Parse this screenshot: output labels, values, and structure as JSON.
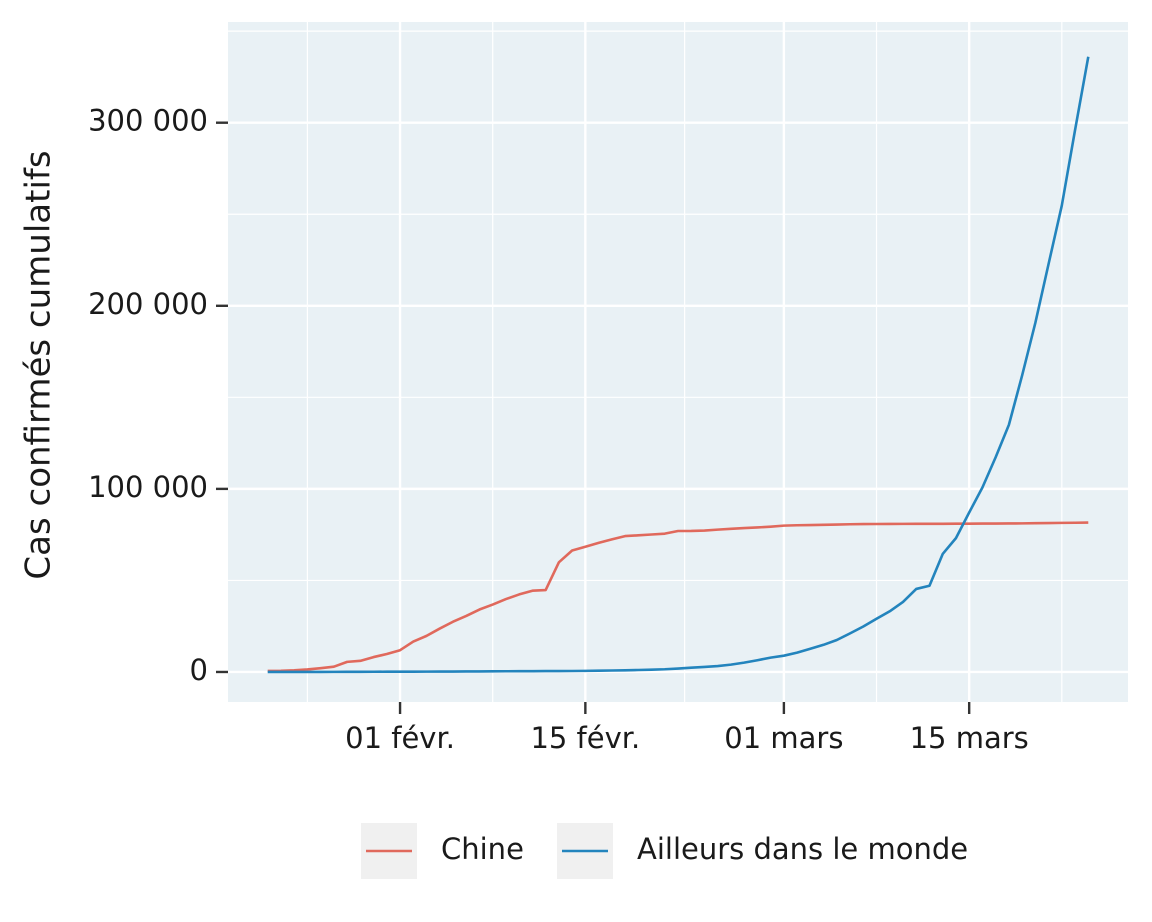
{
  "chart_data": {
    "type": "line",
    "y_label": "Cas confirmés cumulatifs",
    "x": [
      "01-22",
      "01-23",
      "01-24",
      "01-25",
      "01-26",
      "01-27",
      "01-28",
      "01-29",
      "01-30",
      "01-31",
      "02-01",
      "02-02",
      "02-03",
      "02-04",
      "02-05",
      "02-06",
      "02-07",
      "02-08",
      "02-09",
      "02-10",
      "02-11",
      "02-12",
      "02-13",
      "02-14",
      "02-15",
      "02-16",
      "02-17",
      "02-18",
      "02-19",
      "02-20",
      "02-21",
      "02-22",
      "02-23",
      "02-24",
      "02-25",
      "02-26",
      "02-27",
      "02-28",
      "02-29",
      "03-01",
      "03-02",
      "03-03",
      "03-04",
      "03-05",
      "03-06",
      "03-07",
      "03-08",
      "03-09",
      "03-10",
      "03-11",
      "03-12",
      "03-13",
      "03-14",
      "03-15",
      "03-16",
      "03-17",
      "03-18",
      "03-19",
      "03-20",
      "03-21",
      "03-22",
      "03-23",
      "03-24"
    ],
    "series": [
      {
        "name": "Chine",
        "color": "#e0695c",
        "values": [
          548,
          643,
          920,
          1406,
          2075,
          2877,
          5509,
          6087,
          8141,
          9802,
          11891,
          16630,
          19716,
          23707,
          27440,
          30587,
          34110,
          36814,
          39829,
          42354,
          44386,
          44759,
          59895,
          66358,
          68413,
          70513,
          72434,
          74211,
          74619,
          75077,
          75550,
          77001,
          77022,
          77241,
          77754,
          78166,
          78600,
          78928,
          79356,
          79932,
          80136,
          80261,
          80386,
          80537,
          80690,
          80770,
          80823,
          80860,
          80887,
          80921,
          80932,
          80945,
          80977,
          81003,
          81033,
          81058,
          81102,
          81156,
          81250,
          81305,
          81435,
          81498,
          81591
        ]
      },
      {
        "name": "Ailleurs dans le monde",
        "color": "#2384bd",
        "values": [
          7,
          11,
          21,
          28,
          43,
          54,
          64,
          82,
          114,
          139,
          149,
          169,
          188,
          218,
          242,
          282,
          315,
          335,
          389,
          413,
          436,
          470,
          510,
          525,
          603,
          691,
          799,
          901,
          1078,
          1272,
          1492,
          1878,
          2351,
          2727,
          3223,
          4004,
          5121,
          6417,
          7829,
          8891,
          10567,
          12668,
          14844,
          17455,
          21084,
          24829,
          29062,
          33160,
          38276,
          45349,
          47069,
          64457,
          73111,
          87102,
          100773,
          117287,
          134963,
          161947,
          190716,
          222880,
          254823,
          296000,
          336000
        ]
      }
    ],
    "xlim": [
      "01-19",
      "03-27"
    ],
    "xticks": [
      {
        "value": "02-01",
        "label": "01 févr."
      },
      {
        "value": "02-15",
        "label": "15 févr."
      },
      {
        "value": "03-01",
        "label": "01 mars"
      },
      {
        "value": "03-15",
        "label": "15 mars"
      }
    ],
    "ylim": [
      -16400,
      355000
    ],
    "yticks": [
      0,
      {
        "value": 100000,
        "label": "100 000"
      },
      {
        "value": 200000,
        "label": "200 000"
      },
      {
        "value": 300000,
        "label": "300 000"
      }
    ],
    "grid": true,
    "legend": "bottom"
  }
}
